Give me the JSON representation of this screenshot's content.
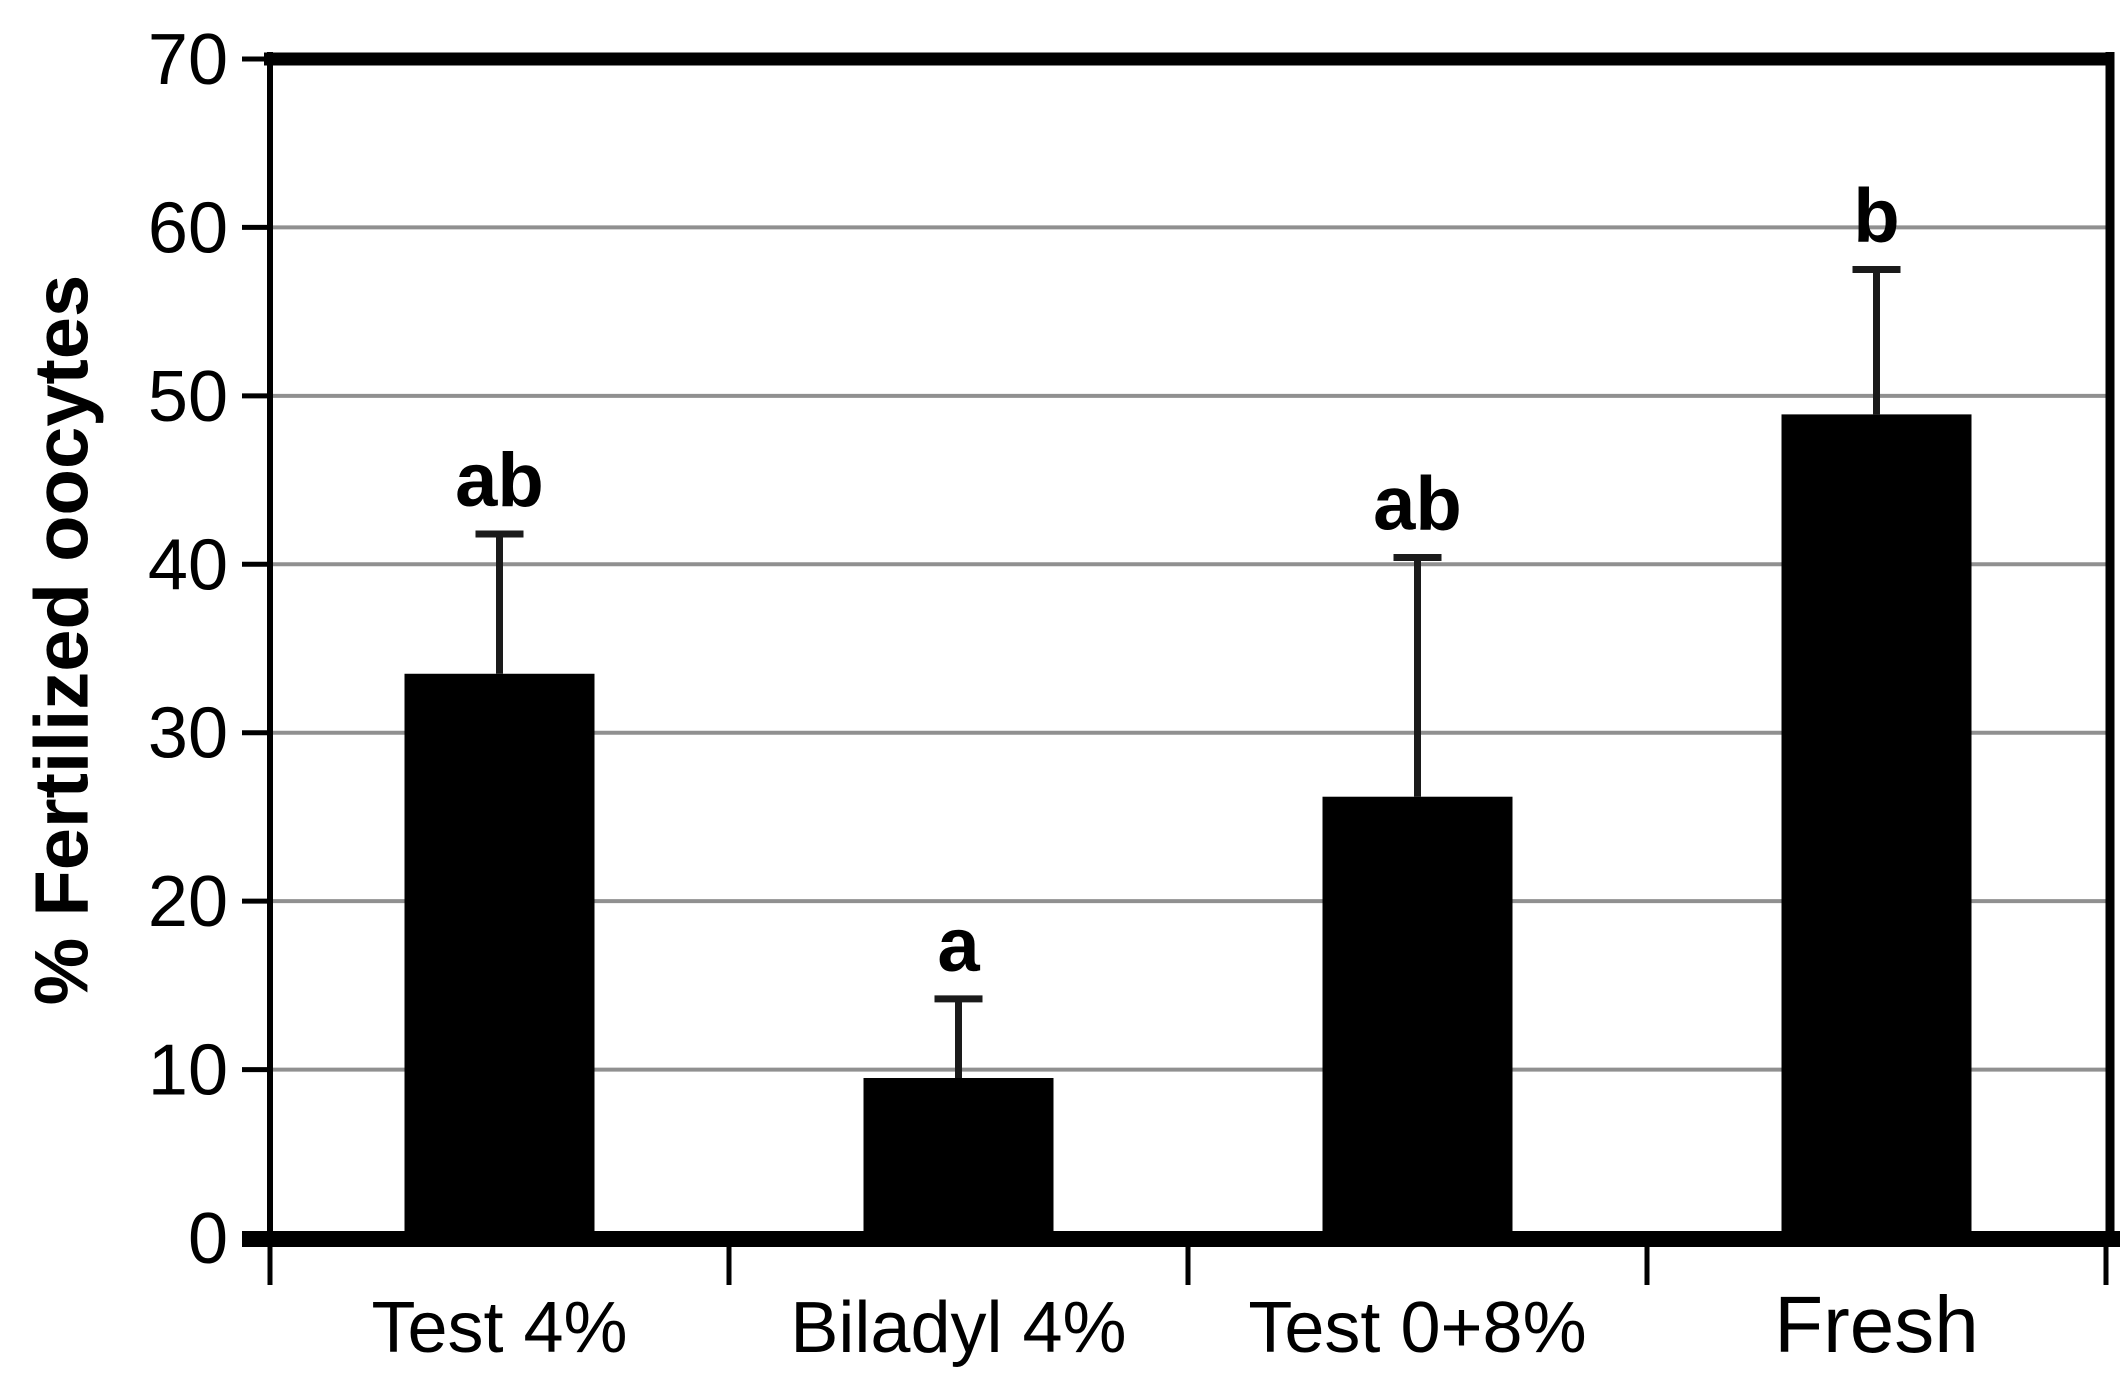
{
  "figure": {
    "background": "#ffffff"
  },
  "chart_data": {
    "type": "bar",
    "categories": [
      "Test 4%",
      "Biladyl 4%",
      "Test 0+8%",
      "Fresh"
    ],
    "values": [
      33.5,
      9.5,
      26.2,
      48.9
    ],
    "error_up": [
      8.3,
      4.7,
      14.2,
      8.6
    ],
    "significance_labels": [
      "ab",
      "a",
      "ab",
      "b"
    ],
    "title": "",
    "xlabel": "",
    "ylabel": "% Fertilized oocytes",
    "ylim": [
      0,
      70
    ],
    "ytick_step": 10,
    "ytick_labels": [
      "0",
      "10",
      "20",
      "30",
      "40",
      "50",
      "60",
      "70"
    ],
    "grid": "horizontal",
    "legend": "none",
    "bar_color": "#000000",
    "gridline_color": "#909090",
    "axis_color": "#000000",
    "error_bar_color": "#1a1a1a"
  }
}
